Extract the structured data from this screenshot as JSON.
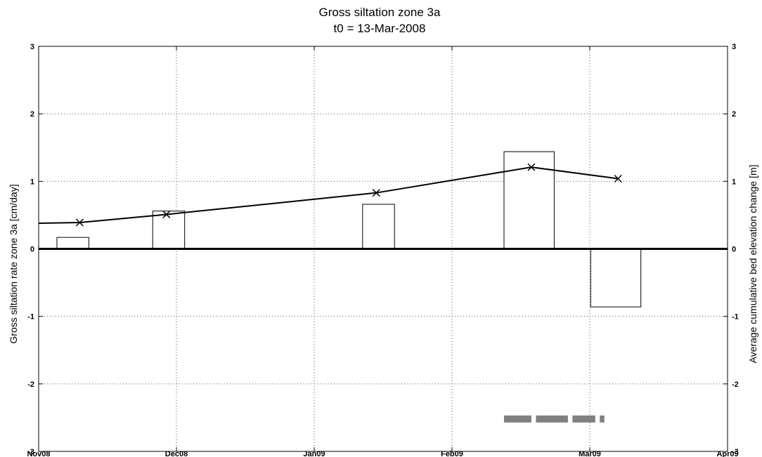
{
  "chart_data": {
    "type": "bar",
    "title": "Gross siltation zone 3a",
    "subtitle": "t0 = 13-Mar-2008",
    "ylabel_left": "Gross siltation rate zone 3a [cm/day]",
    "ylabel_right": "Average cumulative bed elevation change [m]",
    "x_tick_labels": [
      "Nov08",
      "Dec08",
      "Jan09",
      "Feb09",
      "Mar09",
      "Apr09"
    ],
    "xlim_days": [
      0,
      151
    ],
    "ylim_left": [
      -3,
      3
    ],
    "ylim_right": [
      -3,
      3
    ],
    "y_ticks_left": [
      "-3",
      "-2",
      "-1",
      "0",
      "1",
      "2",
      "3"
    ],
    "y_ticks_right": [
      "-3",
      "-2",
      "-1",
      "0",
      "1",
      "2",
      "3"
    ],
    "grid": true,
    "series": [
      {
        "kind": "bar",
        "x_start_days": [
          4,
          25,
          71,
          102,
          121
        ],
        "x_end_days": [
          11,
          32,
          78,
          113,
          132
        ],
        "values": [
          0.17,
          0.56,
          0.66,
          1.44,
          -0.86
        ]
      },
      {
        "kind": "line",
        "x_days": [
          0,
          9,
          28,
          74,
          108,
          127
        ],
        "values": [
          0.38,
          0.39,
          0.51,
          0.83,
          1.21,
          1.04
        ],
        "marker_x_days": [
          9,
          28,
          74,
          108,
          127
        ]
      },
      {
        "kind": "segments",
        "y": -2.52,
        "segments_days": [
          [
            102,
            108
          ],
          [
            109,
            116
          ],
          [
            117,
            122
          ],
          [
            123,
            124
          ]
        ]
      }
    ],
    "colors": {
      "bars": "#ffffff",
      "bar_edge": "#000000",
      "line": "#000000",
      "segments": "#808080"
    }
  }
}
